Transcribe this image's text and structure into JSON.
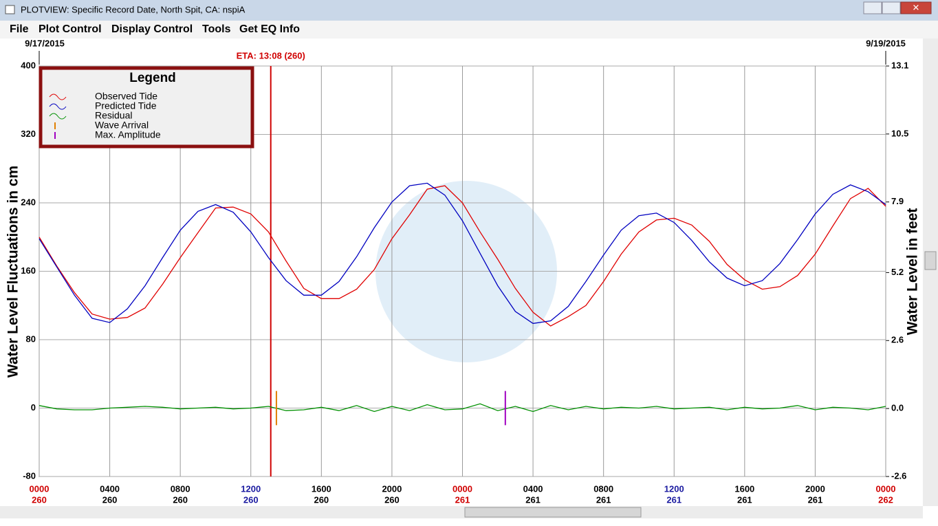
{
  "window_title": "PLOTVIEW: Specific Record Date, North Spit, CA: nspiA",
  "menu": [
    "File",
    "Plot Control",
    "Display Control",
    "Tools",
    "Get EQ Info"
  ],
  "chart_data": {
    "type": "line",
    "start_date": "9/17/2015",
    "end_date": "9/19/2015",
    "ylabel": "Water Level Fluctuations in cm",
    "y2label": "Water Level in feet",
    "legend_title": "Legend",
    "x": [
      0,
      1,
      2,
      3,
      4,
      5,
      6,
      7,
      8,
      9,
      10,
      11,
      12,
      13,
      14,
      15,
      16,
      17,
      18,
      19,
      20,
      21,
      22,
      23,
      24,
      25,
      26,
      27,
      28,
      29,
      30,
      31,
      32,
      33,
      34,
      35,
      36,
      37,
      38,
      39,
      40,
      41,
      42,
      43,
      44,
      45,
      46,
      47,
      48
    ],
    "xlim": [
      0,
      48
    ],
    "xticks": [
      {
        "value": 0,
        "label": "0000",
        "day": "260",
        "color": "#d00000"
      },
      {
        "value": 4,
        "label": "0400",
        "day": "260",
        "color": "#000000"
      },
      {
        "value": 8,
        "label": "0800",
        "day": "260",
        "color": "#000000"
      },
      {
        "value": 12,
        "label": "1200",
        "day": "260",
        "color": "#1a1aa0"
      },
      {
        "value": 16,
        "label": "1600",
        "day": "260",
        "color": "#000000"
      },
      {
        "value": 20,
        "label": "2000",
        "day": "260",
        "color": "#000000"
      },
      {
        "value": 24,
        "label": "0000",
        "day": "261",
        "color": "#d00000"
      },
      {
        "value": 28,
        "label": "0400",
        "day": "261",
        "color": "#000000"
      },
      {
        "value": 32,
        "label": "0800",
        "day": "261",
        "color": "#000000"
      },
      {
        "value": 36,
        "label": "1200",
        "day": "261",
        "color": "#1a1aa0"
      },
      {
        "value": 40,
        "label": "1600",
        "day": "261",
        "color": "#000000"
      },
      {
        "value": 44,
        "label": "2000",
        "day": "261",
        "color": "#000000"
      },
      {
        "value": 48,
        "label": "0000",
        "day": "262",
        "color": "#d00000"
      }
    ],
    "ylim": [
      -80,
      400
    ],
    "yticks": [
      -80,
      0,
      80,
      160,
      240,
      320,
      400
    ],
    "y2lim": [
      -2.6,
      13.1
    ],
    "y2ticks": [
      -2.6,
      {
        "value": 0,
        "label": "0.0"
      },
      2.6,
      5.2,
      7.9,
      10.5,
      13.1
    ],
    "grid": true,
    "series": [
      {
        "name": "Observed Tide",
        "color": "#e00000",
        "values": [
          200,
          166,
          135,
          110,
          104,
          106,
          117,
          145,
          176,
          205,
          234,
          235,
          227,
          206,
          172,
          140,
          128,
          128,
          139,
          162,
          198,
          226,
          256,
          260,
          240,
          206,
          174,
          140,
          112,
          96,
          107,
          120,
          148,
          180,
          206,
          220,
          222,
          214,
          195,
          168,
          150,
          139,
          142,
          155,
          180,
          213,
          245,
          257,
          236
        ]
      },
      {
        "name": "Predicted Tide",
        "color": "#0000c0",
        "values": [
          198,
          165,
          132,
          105,
          100,
          116,
          143,
          176,
          208,
          230,
          238,
          229,
          206,
          176,
          149,
          132,
          132,
          148,
          177,
          211,
          241,
          260,
          263,
          249,
          219,
          181,
          143,
          113,
          99,
          102,
          119,
          148,
          179,
          208,
          225,
          228,
          217,
          196,
          171,
          152,
          143,
          149,
          169,
          197,
          227,
          250,
          261,
          253,
          238
        ]
      },
      {
        "name": "Residual",
        "color": "#009000",
        "values": [
          3,
          -1,
          -2,
          -2,
          0,
          1,
          2,
          1,
          -1,
          0,
          1,
          -1,
          0,
          2,
          -3,
          -2,
          1,
          -3,
          3,
          -4,
          2,
          -3,
          4,
          -2,
          -1,
          5,
          -3,
          2,
          -4,
          3,
          -2,
          2,
          -1,
          1,
          0,
          2,
          -1,
          0,
          1,
          -2,
          1,
          -1,
          0,
          3,
          -2,
          1,
          0,
          -2,
          2
        ]
      }
    ],
    "markers": [
      {
        "name": "Wave Arrival",
        "color": "#e08000",
        "x": 13.45,
        "values": [
          -20,
          20
        ]
      },
      {
        "name": "Max. Amplitude",
        "color": "#a000c0",
        "x": 26.43,
        "values": [
          -20,
          20
        ]
      }
    ],
    "eta": {
      "label": "ETA: 13:08 (260)",
      "x": 13.13,
      "color": "#d00000"
    }
  }
}
